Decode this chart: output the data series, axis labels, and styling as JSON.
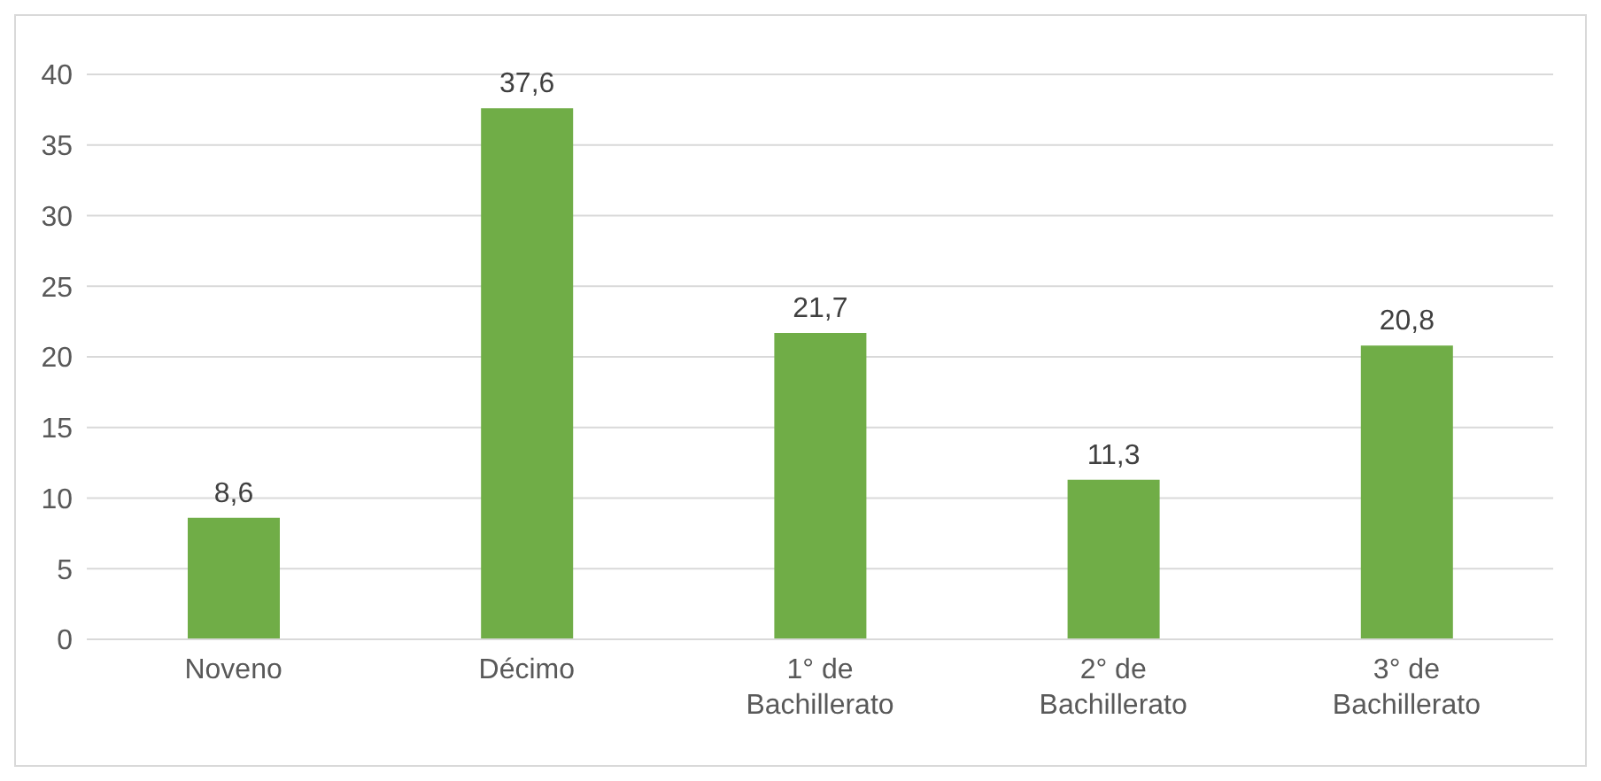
{
  "chart_data": {
    "type": "bar",
    "categories": [
      "Noveno",
      "Décimo",
      "1° de Bachillerato",
      "2° de Bachillerato",
      "3° de Bachillerato"
    ],
    "values": [
      8.6,
      37.6,
      21.7,
      11.3,
      20.8
    ],
    "value_labels": [
      "8,6",
      "37,6",
      "21,7",
      "11,3",
      "20,8"
    ],
    "color": "#70ad47",
    "ylim": [
      0,
      40
    ],
    "yticks": [
      0,
      5,
      10,
      15,
      20,
      25,
      30,
      35,
      40
    ],
    "grid": "y"
  }
}
